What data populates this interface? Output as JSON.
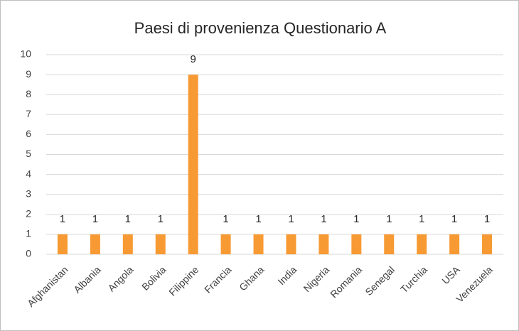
{
  "chart_data": {
    "type": "bar",
    "title": "Paesi di provenienza Questionario A",
    "categories": [
      "Afghanistan",
      "Albania",
      "Angola",
      "Bolivia",
      "Filippine",
      "Francia",
      "Ghana",
      "India",
      "Nigeria",
      "Romania",
      "Senegal",
      "Turchia",
      "USA",
      "Venezuela"
    ],
    "values": [
      1,
      1,
      1,
      1,
      9,
      1,
      1,
      1,
      1,
      1,
      1,
      1,
      1,
      1
    ],
    "color": "#f79a33",
    "ylim": [
      0,
      10
    ],
    "yticks": [
      0,
      1,
      2,
      3,
      4,
      5,
      6,
      7,
      8,
      9,
      10
    ],
    "grid": true
  }
}
